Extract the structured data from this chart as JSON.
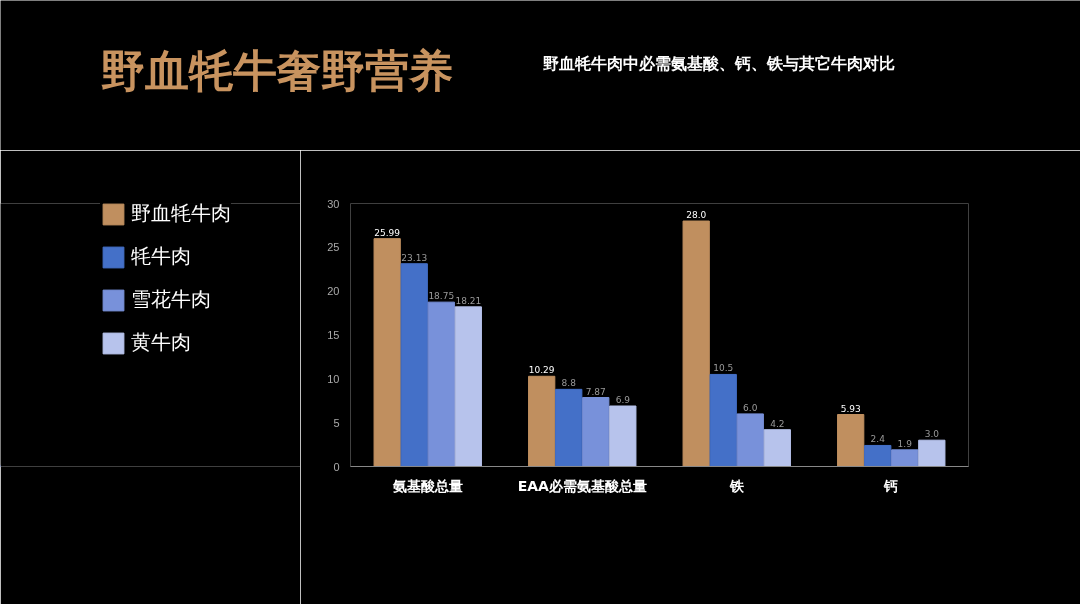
{
  "chart_data": {
    "type": "bar",
    "title": "野血牦牛奢野营养",
    "subtitle": "野血牦牛肉中必需氨基酸、钙、铁与其它牛肉对比",
    "categories": [
      "氨基酸总量",
      "EAA必需氨基酸总量",
      "铁",
      "钙"
    ],
    "series": [
      {
        "name": "野血牦牛肉",
        "color": "#c08f5f",
        "values": [
          25.99,
          10.29,
          28.0,
          5.93
        ],
        "value_labels": [
          "25.99",
          "10.29",
          "28.0",
          "5.93"
        ]
      },
      {
        "name": "牦牛肉",
        "color": "#4470c8",
        "values": [
          23.13,
          8.8,
          10.5,
          2.4
        ],
        "value_labels": [
          "23.13",
          "8.8",
          "10.5",
          "2.4"
        ]
      },
      {
        "name": "雪花牛肉",
        "color": "#7891da",
        "values": [
          18.75,
          7.87,
          6.0,
          1.9
        ],
        "value_labels": [
          "18.75",
          "7.87",
          "6.0",
          "1.9"
        ]
      },
      {
        "name": "黄牛肉",
        "color": "#b7c3ec",
        "values": [
          18.21,
          6.9,
          4.2,
          3.0
        ],
        "value_labels": [
          "18.21",
          "6.9",
          "4.2",
          "3.0"
        ]
      }
    ],
    "ylim": [
      0,
      30
    ],
    "yticks": [
      0,
      5,
      10,
      15,
      20,
      25,
      30
    ],
    "grid": false,
    "legend": "left"
  }
}
